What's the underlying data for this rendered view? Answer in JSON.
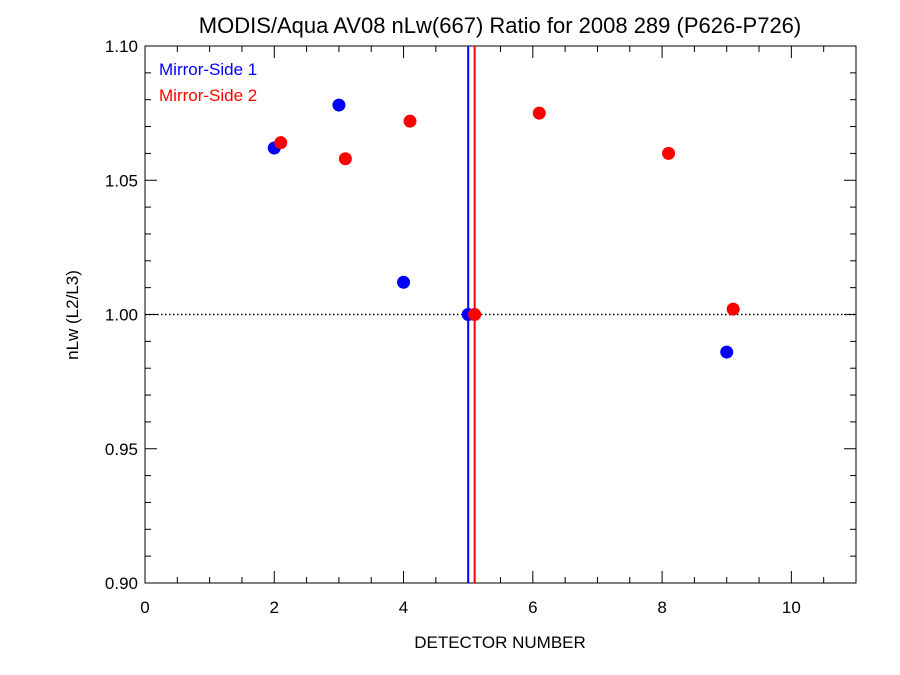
{
  "chart_data": {
    "type": "scatter",
    "title": "MODIS/Aqua AV08 nLw(667) Ratio for 2008 289 (P626-P726)",
    "xlabel": "DETECTOR NUMBER",
    "ylabel": "nLw (L2/L3)",
    "xlim": [
      0,
      11
    ],
    "ylim": [
      0.9,
      1.1
    ],
    "x_ticks": [
      0,
      2,
      4,
      6,
      8,
      10
    ],
    "x_tick_labels": [
      "0",
      "2",
      "4",
      "6",
      "8",
      "10"
    ],
    "x_minor_step": 0.5,
    "y_ticks": [
      0.9,
      0.95,
      1.0,
      1.05,
      1.1
    ],
    "y_tick_labels": [
      "0.90",
      "0.95",
      "1.00",
      "1.05",
      "1.10"
    ],
    "y_minor_step": 0.01,
    "grid": false,
    "legend_position": "top-left",
    "reference_line": {
      "y": 1.0,
      "style": "dotted",
      "color": "#000000"
    },
    "vertical_lines": [
      {
        "x": 5.0,
        "color": "#0000ff"
      },
      {
        "x": 5.1,
        "color": "#ff0000"
      }
    ],
    "series": [
      {
        "name": "Mirror-Side 1",
        "color": "#0000ff",
        "points": [
          {
            "x": 2,
            "y": 1.062
          },
          {
            "x": 3,
            "y": 1.078
          },
          {
            "x": 4,
            "y": 1.012
          },
          {
            "x": 5,
            "y": 1.0
          },
          {
            "x": 9,
            "y": 0.986
          }
        ]
      },
      {
        "name": "Mirror-Side 2",
        "color": "#ff0000",
        "points": [
          {
            "x": 2.1,
            "y": 1.064
          },
          {
            "x": 3.1,
            "y": 1.058
          },
          {
            "x": 4.1,
            "y": 1.072
          },
          {
            "x": 5.1,
            "y": 1.0
          },
          {
            "x": 6.1,
            "y": 1.075
          },
          {
            "x": 8.1,
            "y": 1.06
          },
          {
            "x": 9.1,
            "y": 1.002
          }
        ]
      }
    ]
  }
}
